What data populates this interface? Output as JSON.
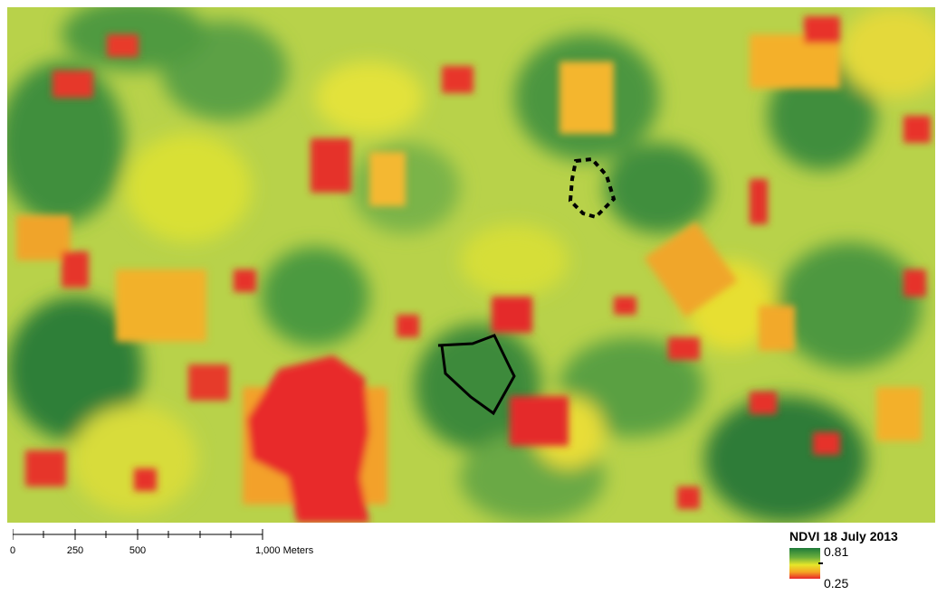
{
  "map": {
    "title": "NDVI 18 July 2013",
    "colors": {
      "high": "#1e7a3a",
      "mid_high": "#6aae3c",
      "mid": "#e6e62a",
      "mid_low": "#f5a623",
      "low": "#e8262a",
      "outline": "#000000"
    },
    "features": [
      "field-outline-solid",
      "field-outline-dashed"
    ]
  },
  "scalebar": {
    "labels": [
      "0",
      "250",
      "500",
      "1,000 Meters"
    ]
  },
  "legend": {
    "title": "NDVI 18 July 2013",
    "max_label": "0.81",
    "min_label": "0.25"
  }
}
